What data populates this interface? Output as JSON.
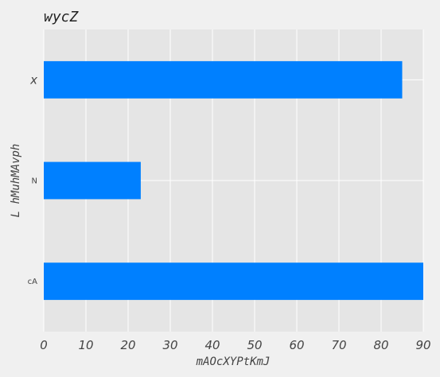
{
  "chart_data": {
    "type": "bar",
    "orientation": "horizontal",
    "title": "wycZ",
    "xlabel": "mAOcXYPtKmJ",
    "ylabel": "L hMuhMAvph",
    "categories": [
      "x",
      "N",
      "cA"
    ],
    "values": [
      85,
      23,
      90
    ],
    "xlim": [
      0,
      90
    ],
    "xticks": [
      0,
      10,
      20,
      30,
      40,
      50,
      60,
      70,
      80,
      90
    ],
    "grid": true,
    "colors": {
      "bar": "#0080ff",
      "plot_background": "#e5e5e5",
      "page_background": "#f0f0f0",
      "grid": "#ffffff"
    }
  }
}
